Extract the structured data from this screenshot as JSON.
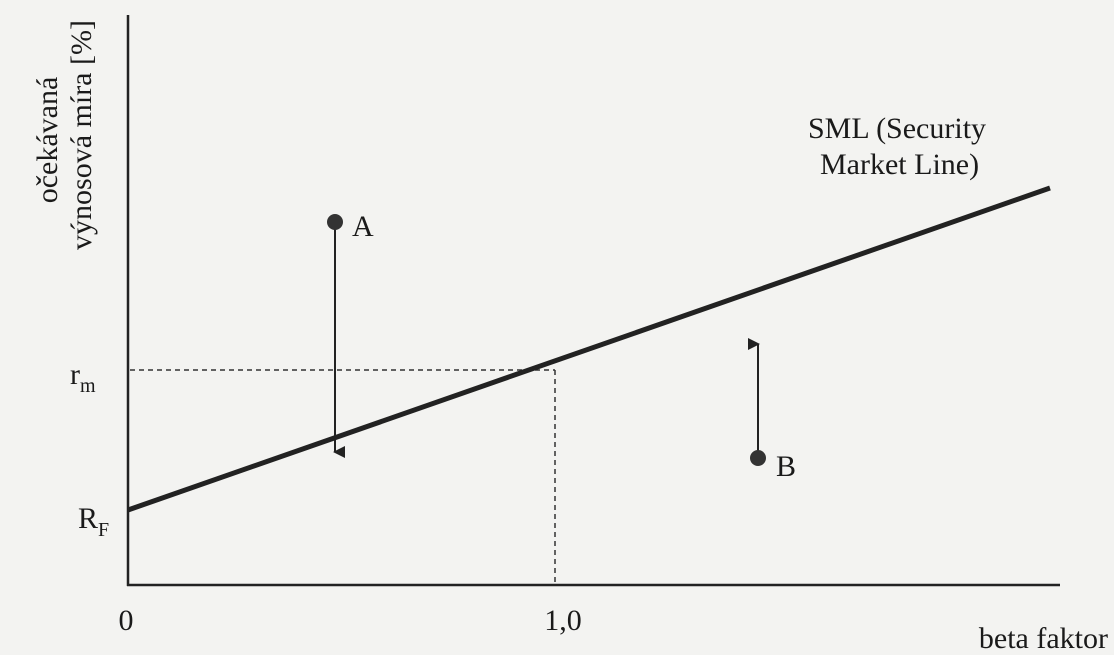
{
  "y_axis_label": [
    "očekávaná",
    "výnosová míra [%]"
  ],
  "x_axis_label": "beta faktor",
  "x_ticks": [
    "0",
    "1,0"
  ],
  "y_marks": [
    {
      "main": "r",
      "sub": "m"
    },
    {
      "main": "R",
      "sub": "F"
    }
  ],
  "line_label": [
    "SML (Security",
    "Market Line)"
  ],
  "points": [
    "A",
    "B"
  ]
}
